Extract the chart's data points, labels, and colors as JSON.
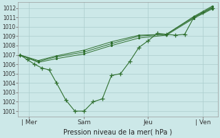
{
  "bg_color": "#cce8e8",
  "grid_color": "#aacccc",
  "line_color": "#2d6e2d",
  "marker_color": "#2d6e2d",
  "title": "Pression niveau de la mer( hPa )",
  "xtick_labels": [
    "| Mer",
    "Sam",
    "Jeu",
    "| Ven"
  ],
  "xtick_positions": [
    0.5,
    3.5,
    7.0,
    10.0
  ],
  "ytick_min": 1001,
  "ytick_max": 1012,
  "ylim": [
    1000.4,
    1012.6
  ],
  "xlim": [
    -0.1,
    10.8
  ],
  "series_main": {
    "x": [
      0.0,
      0.4,
      0.8,
      1.2,
      1.6,
      2.0,
      2.5,
      3.0,
      3.5,
      4.0,
      4.5,
      5.0,
      5.5,
      6.0,
      6.5,
      7.0,
      7.5,
      8.0,
      8.5,
      9.0,
      9.5,
      10.0,
      10.5
    ],
    "y": [
      1007.0,
      1006.5,
      1006.0,
      1005.6,
      1005.4,
      1004.0,
      1002.2,
      1001.0,
      1001.0,
      1002.0,
      1002.3,
      1004.8,
      1005.0,
      1006.3,
      1007.8,
      1008.5,
      1009.3,
      1009.2,
      1009.1,
      1009.2,
      1011.0,
      1011.5,
      1012.0
    ]
  },
  "series_smooth": [
    {
      "x": [
        0.0,
        1.0,
        2.0,
        3.5,
        5.0,
        6.5,
        8.0,
        9.5,
        10.5
      ],
      "y": [
        1007.0,
        1006.3,
        1006.8,
        1007.3,
        1008.2,
        1009.0,
        1009.2,
        1011.0,
        1012.1
      ]
    },
    {
      "x": [
        0.0,
        1.0,
        2.0,
        3.5,
        5.0,
        6.5,
        8.0,
        9.5,
        10.5
      ],
      "y": [
        1007.0,
        1006.4,
        1006.9,
        1007.5,
        1008.4,
        1009.1,
        1009.2,
        1011.1,
        1012.2
      ]
    },
    {
      "x": [
        0.0,
        1.0,
        2.0,
        3.5,
        5.0,
        6.5,
        8.0,
        9.5,
        10.5
      ],
      "y": [
        1007.0,
        1006.2,
        1006.6,
        1007.1,
        1008.0,
        1008.8,
        1009.1,
        1010.9,
        1011.9
      ]
    }
  ]
}
